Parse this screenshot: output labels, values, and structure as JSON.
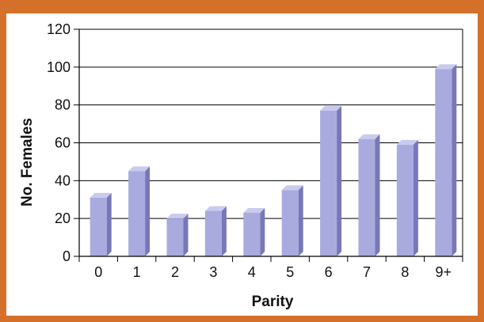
{
  "chart_data": {
    "type": "bar",
    "categories": [
      "0",
      "1",
      "2",
      "3",
      "4",
      "5",
      "6",
      "7",
      "8",
      "9+"
    ],
    "values": [
      31,
      45,
      20,
      24,
      23,
      35,
      77,
      62,
      59,
      99
    ],
    "title": "",
    "xlabel": "Parity",
    "ylabel": "No. Females",
    "ylim": [
      0,
      120
    ],
    "yticks": [
      "0",
      "20",
      "40",
      "60",
      "80",
      "100",
      "120"
    ],
    "grid": true,
    "style": "3d-bar"
  },
  "colors": {
    "frame": "#d4702a",
    "background": "#ffffff",
    "bar_front": "#a9abde",
    "bar_top": "#c9cbee",
    "bar_side": "#7678b8",
    "grid": "#000000"
  }
}
